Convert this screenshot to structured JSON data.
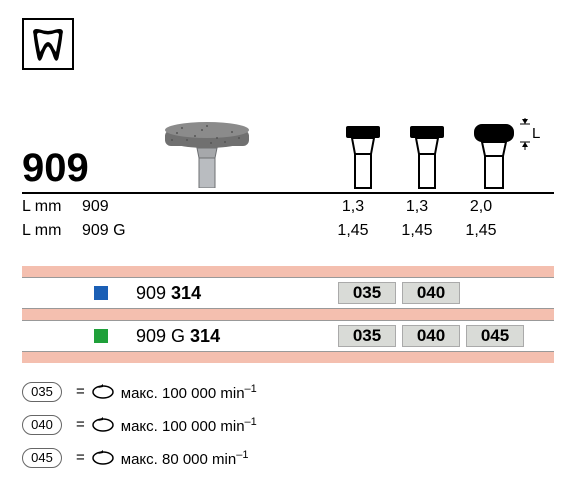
{
  "product_number": "909",
  "specs": {
    "rows": [
      {
        "label": "L mm",
        "model": "909",
        "values": [
          "1,3",
          "1,3",
          "2,0"
        ]
      },
      {
        "label": "L mm",
        "model": "909 G",
        "values": [
          "1,45",
          "1,45",
          "1,45"
        ]
      }
    ]
  },
  "variants": [
    {
      "color": "#1b5fb5",
      "code_prefix": "909",
      "code_bold": "314",
      "sizes": [
        "035",
        "040"
      ]
    },
    {
      "color": "#1fa03a",
      "code_prefix": "909 G",
      "code_bold": "314",
      "sizes": [
        "035",
        "040",
        "045"
      ]
    }
  ],
  "legend": [
    {
      "size": "035",
      "text": "макс. 100 000 min",
      "sup": "–1"
    },
    {
      "size": "040",
      "text": "макс. 100 000 min",
      "sup": "–1"
    },
    {
      "size": "045",
      "text": "макс. 80 000 min",
      "sup": "–1"
    }
  ],
  "colors": {
    "pink_band": "#f4bfaf",
    "size_cell_bg": "#d9dbd7",
    "border": "#999"
  },
  "dim_label": "L"
}
